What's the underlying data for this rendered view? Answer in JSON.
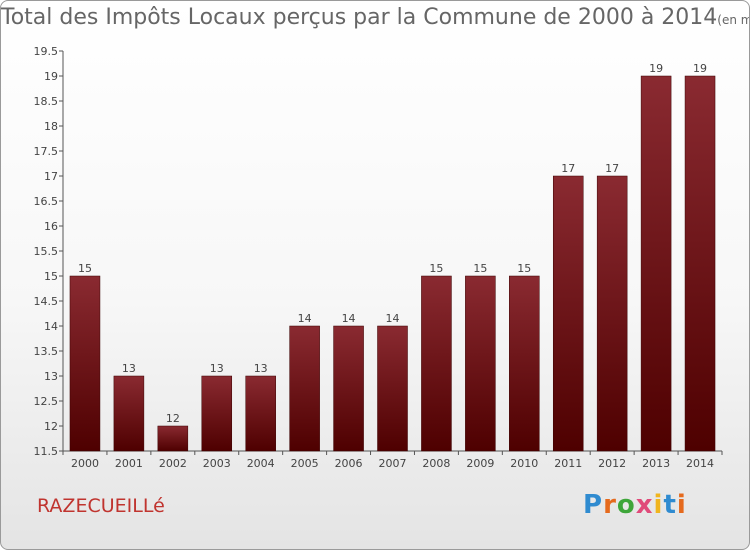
{
  "header": {
    "title": "Total des Impôts Locaux perçus par la Commune de 2000 à 2014",
    "unit": "(en milliers d'€)"
  },
  "commune": "RAZECUEILLé",
  "brand": {
    "letters": [
      "P",
      "r",
      "o",
      "x",
      "i",
      "t",
      "i"
    ],
    "colors": [
      "#2f8bd0",
      "#e56a1d",
      "#3ea63a",
      "#e04b7a",
      "#f0b51e",
      "#2f8bd0",
      "#e56a1d"
    ]
  },
  "chart_data": {
    "type": "bar",
    "title": "Total des Impôts Locaux perçus par la Commune de 2000 à 2014",
    "categories": [
      "2000",
      "2001",
      "2002",
      "2003",
      "2004",
      "2005",
      "2006",
      "2007",
      "2008",
      "2009",
      "2010",
      "2011",
      "2012",
      "2013",
      "2014"
    ],
    "values": [
      15,
      13,
      12,
      13,
      13,
      14,
      14,
      14,
      15,
      15,
      15,
      17,
      17,
      19,
      19
    ],
    "ylim": [
      11.5,
      19.5
    ],
    "yticks": [
      "11.5",
      "12",
      "12.5",
      "13",
      "13.5",
      "14",
      "14.5",
      "15",
      "15.5",
      "16",
      "16.5",
      "17",
      "17.5",
      "18",
      "18.5",
      "19",
      "19.5"
    ],
    "grid": false,
    "colors": {
      "bar_top": "#8a2a31",
      "bar_bottom": "#4e0000",
      "axis": "#555555",
      "label": "#444444"
    }
  }
}
